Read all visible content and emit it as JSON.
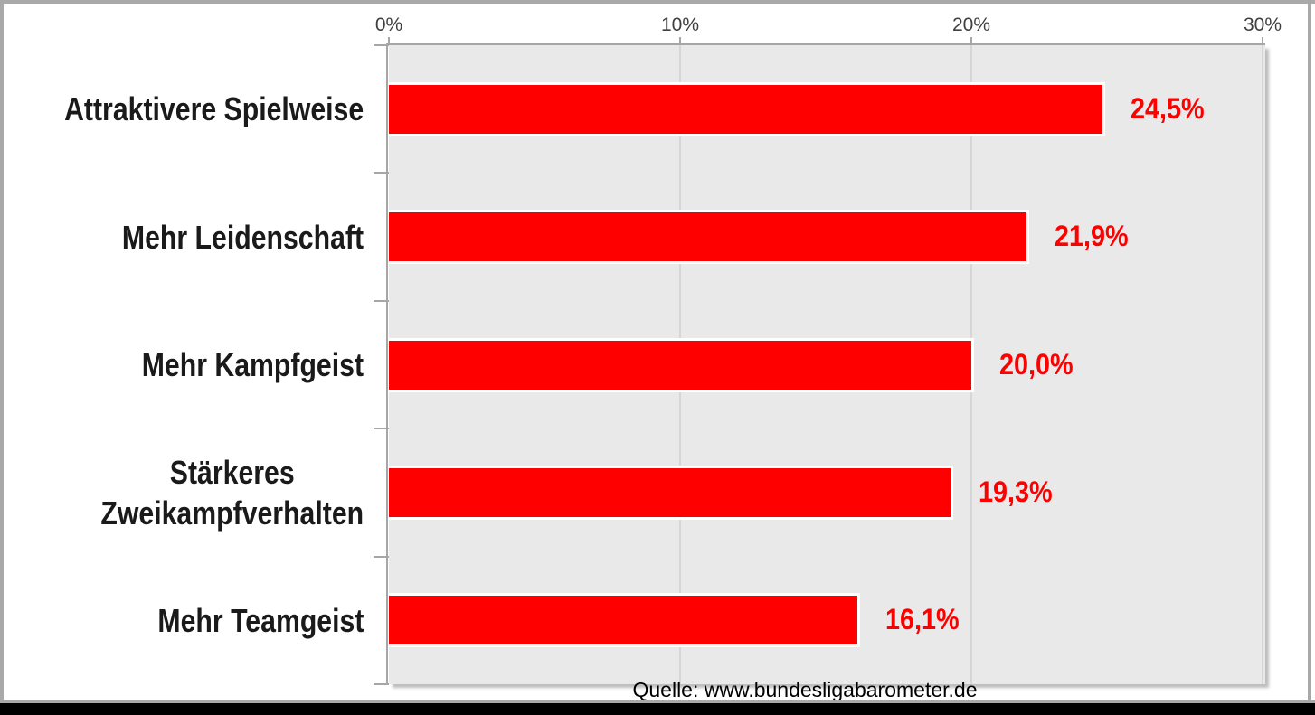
{
  "chart_data": {
    "type": "bar",
    "orientation": "horizontal",
    "title": "",
    "categories": [
      "Attraktivere Spielweise",
      "Mehr Leidenschaft",
      "Mehr Kampfgeist",
      "Stärkeres Zweikampfverhalten",
      "Mehr Teamgeist"
    ],
    "category_display_lines": [
      [
        "Attraktivere Spielweise"
      ],
      [
        "Mehr Leidenschaft"
      ],
      [
        "Mehr Kampfgeist"
      ],
      [
        "Stärkeres",
        "Zweikampfverhalten"
      ],
      [
        "Mehr Teamgeist"
      ]
    ],
    "values": [
      24.5,
      21.9,
      20.0,
      19.3,
      16.1
    ],
    "value_labels": [
      "24,5%",
      "21,9%",
      "20,0%",
      "19,3%",
      "16,1%"
    ],
    "xlim": [
      0,
      30
    ],
    "x_ticks": [
      {
        "label": "0%",
        "value": 0
      },
      {
        "label": "10%",
        "value": 10
      },
      {
        "label": "20%",
        "value": 20
      },
      {
        "label": "30%",
        "value": 30
      }
    ],
    "axis_position": "top",
    "grid": true,
    "legend": "none",
    "source": "Quelle: www.bundesligabarometer.de",
    "colors": {
      "bar": "#FF0000",
      "bar_border": "#FFFFFF",
      "value_label": "#FF0000",
      "plot_background": "#E9E9E9",
      "grid_line": "#D6D6D6",
      "axis_line": "#A6A6A6",
      "tick_label": "#3F3F3F",
      "category_label": "#1A1A1A",
      "source_text": "#000000",
      "frame_border": "#A9A9A9",
      "bottom_bar": "#000000"
    }
  }
}
